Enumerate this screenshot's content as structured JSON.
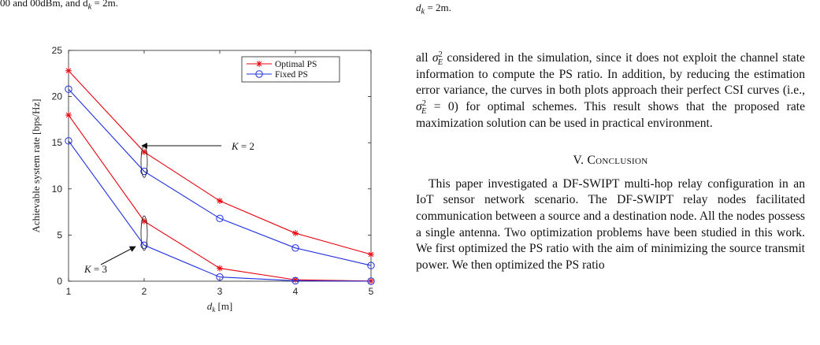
{
  "header": {
    "left_fragment": "00 and 00dBm, and d",
    "left_fragment_sub": "k",
    "left_fragment_tail": " = 2m.",
    "right_fragment": "d",
    "right_fragment_sub": "k",
    "right_fragment_tail": " = 2m."
  },
  "chart_data": {
    "type": "line",
    "xlabel": "d_k [m]",
    "ylabel": "Achievable system rate [bps/Hz]",
    "xlim": [
      1,
      5
    ],
    "ylim": [
      0,
      25
    ],
    "xticks": [
      "1",
      "2",
      "3",
      "4",
      "5"
    ],
    "yticks": [
      "0",
      "5",
      "10",
      "15",
      "20",
      "25"
    ],
    "x": [
      1,
      2,
      3,
      4,
      5
    ],
    "series": [
      {
        "name": "Optimal PS",
        "group": "K=2",
        "color": "#e8000b",
        "marker": "star",
        "values": [
          22.8,
          14.0,
          8.7,
          5.2,
          2.9
        ]
      },
      {
        "name": "Fixed PS",
        "group": "K=2",
        "color": "#1f2fe0",
        "marker": "circle",
        "values": [
          20.8,
          11.9,
          6.8,
          3.6,
          1.7
        ]
      },
      {
        "name": "Optimal PS",
        "group": "K=3",
        "color": "#e8000b",
        "marker": "star",
        "values": [
          18.0,
          6.5,
          1.4,
          0.15,
          0.02
        ]
      },
      {
        "name": "Fixed PS",
        "group": "K=3",
        "color": "#1f2fe0",
        "marker": "circle",
        "values": [
          15.2,
          3.9,
          0.45,
          0.05,
          0.0
        ]
      }
    ],
    "legend": {
      "placement": "top-right",
      "entries": [
        "Optimal PS",
        "Fixed PS"
      ]
    },
    "annotations": [
      {
        "text": "K = 2",
        "var": "K",
        "value": "2"
      },
      {
        "text": "K = 3",
        "var": "K",
        "value": "3"
      }
    ],
    "grid": false
  },
  "text_column": {
    "p1_a": "all ",
    "sigma": "σ",
    "sup2": "2",
    "subE": "E",
    "p1_b": " considered in the simulation, since it does not exploit the channel state information to compute the PS ratio. In addition, by reducing the estimation error variance, the curves in both plots approach their perfect CSI curves (i.e., ",
    "p1_c": " = 0) for optimal schemes. This result shows that the proposed rate maximization solution can be used in practical environment.",
    "section_num": "V. ",
    "section_title": "Conclusion",
    "p2": "This paper investigated a DF-SWIPT multi-hop relay configuration in an IoT sensor network scenario. The DF-SWIPT relay nodes facilitated communication between a source and a destination node. All the nodes possess a single antenna. Two optimization problems have been studied in this work. We first optimized the PS ratio with the aim of minimizing the source transmit power. We then optimized the PS ratio"
  }
}
